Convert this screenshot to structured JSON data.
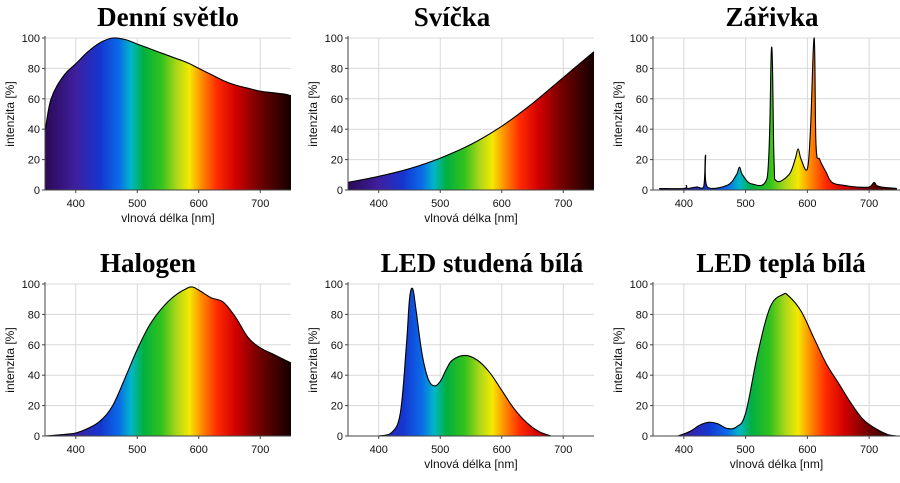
{
  "chart_data": [
    {
      "type": "area",
      "title": "Denní světlo",
      "xlabel": "vlnová délka [nm]",
      "ylabel": "intenzita [%]",
      "xlim": [
        350,
        750
      ],
      "ylim": [
        0,
        100
      ],
      "xticks": [
        400,
        500,
        600,
        700
      ],
      "yticks": [
        0,
        20,
        40,
        60,
        80,
        100
      ],
      "x": [
        350,
        360,
        380,
        400,
        420,
        440,
        460,
        480,
        500,
        520,
        540,
        560,
        580,
        600,
        620,
        640,
        660,
        680,
        700,
        720,
        740,
        750
      ],
      "values": [
        38,
        60,
        75,
        83,
        91,
        97,
        100,
        99,
        96,
        93,
        90,
        87,
        84,
        80,
        76,
        72,
        69,
        67,
        65,
        64,
        63,
        62
      ]
    },
    {
      "type": "area",
      "title": "Svíčka",
      "xlabel": "vlnová délka [nm]",
      "ylabel": "intenzita [%]",
      "xlim": [
        350,
        750
      ],
      "ylim": [
        0,
        100
      ],
      "xticks": [
        400,
        500,
        600,
        700
      ],
      "yticks": [
        0,
        20,
        40,
        60,
        80,
        100
      ],
      "x": [
        350,
        400,
        450,
        500,
        550,
        600,
        650,
        700,
        750
      ],
      "values": [
        5,
        9,
        14,
        21,
        30,
        42,
        57,
        74,
        91
      ]
    },
    {
      "type": "area",
      "title": "Zářivka",
      "xlabel": "",
      "ylabel": "intenzita [%]",
      "xlim": [
        350,
        750
      ],
      "ylim": [
        0,
        100
      ],
      "xticks": [
        400,
        500,
        600,
        700
      ],
      "yticks": [
        0,
        20,
        40,
        60,
        80,
        100
      ],
      "x": [
        360,
        400,
        404,
        406,
        420,
        432,
        435,
        438,
        470,
        485,
        490,
        495,
        510,
        535,
        542,
        546,
        550,
        570,
        580,
        585,
        590,
        600,
        605,
        611,
        614,
        620,
        630,
        640,
        660,
        680,
        700,
        708,
        712,
        720,
        745
      ],
      "values": [
        1,
        1,
        3,
        1,
        2,
        2,
        23,
        2,
        3,
        10,
        15,
        10,
        4,
        8,
        94,
        20,
        6,
        10,
        20,
        27,
        20,
        14,
        40,
        100,
        30,
        20,
        12,
        5,
        3,
        2,
        2,
        5,
        3,
        2,
        1
      ]
    },
    {
      "type": "area",
      "title": "Halogen",
      "xlabel": "",
      "ylabel": "intenzita [%]",
      "xlim": [
        350,
        750
      ],
      "ylim": [
        0,
        100
      ],
      "xticks": [
        400,
        500,
        600,
        700
      ],
      "yticks": [
        0,
        20,
        40,
        60,
        80,
        100
      ],
      "x": [
        350,
        380,
        400,
        420,
        440,
        460,
        480,
        500,
        520,
        540,
        560,
        580,
        590,
        600,
        620,
        640,
        660,
        680,
        700,
        720,
        750
      ],
      "values": [
        0,
        1,
        2,
        5,
        10,
        20,
        38,
        57,
        73,
        84,
        92,
        97,
        98,
        96,
        91,
        88,
        78,
        65,
        58,
        54,
        48
      ]
    },
    {
      "type": "area",
      "title": "LED studená bílá",
      "xlabel": "vlnová délka [nm]",
      "ylabel": "intenzita [%]",
      "xlim": [
        350,
        750
      ],
      "ylim": [
        0,
        100
      ],
      "xticks": [
        400,
        500,
        600,
        700
      ],
      "yticks": [
        0,
        20,
        40,
        60,
        80,
        100
      ],
      "x": [
        400,
        420,
        435,
        445,
        450,
        455,
        460,
        470,
        480,
        490,
        500,
        510,
        520,
        540,
        560,
        580,
        600,
        620,
        640,
        660,
        680
      ],
      "values": [
        0,
        2,
        15,
        60,
        90,
        97,
        85,
        55,
        38,
        33,
        36,
        44,
        50,
        53,
        50,
        42,
        30,
        18,
        9,
        3,
        0
      ]
    },
    {
      "type": "area",
      "title": "LED teplá bílá",
      "xlabel": "vlnová délka [nm]",
      "ylabel": "intenzita [%]",
      "xlim": [
        350,
        750
      ],
      "ylim": [
        0,
        100
      ],
      "xticks": [
        400,
        500,
        600,
        700
      ],
      "yticks": [
        0,
        20,
        40,
        60,
        80,
        100
      ],
      "x": [
        390,
        410,
        425,
        440,
        455,
        470,
        485,
        500,
        520,
        540,
        560,
        570,
        590,
        610,
        630,
        650,
        670,
        690,
        710,
        730,
        745
      ],
      "values": [
        0,
        3,
        7,
        9,
        8,
        5,
        6,
        15,
        55,
        85,
        93,
        92,
        82,
        65,
        48,
        35,
        22,
        11,
        5,
        1,
        0
      ]
    }
  ]
}
